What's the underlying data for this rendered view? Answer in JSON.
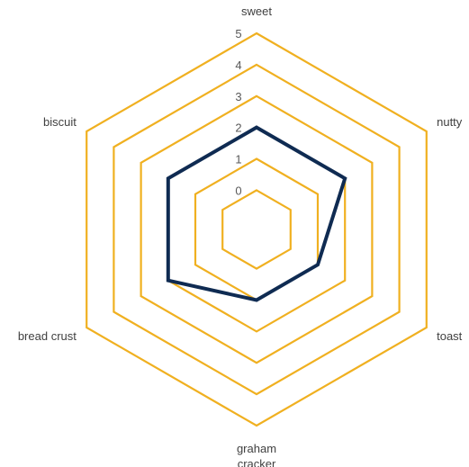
{
  "chart_data": {
    "type": "radar",
    "title": "",
    "categories": [
      "sweet",
      "nutty",
      "toast",
      "graham cracker",
      "bread crust",
      "biscuit"
    ],
    "category_lines": [
      [
        "sweet"
      ],
      [
        "nutty"
      ],
      [
        "toast"
      ],
      [
        "graham",
        "cracker"
      ],
      [
        "bread crust"
      ],
      [
        "biscuit"
      ]
    ],
    "ticks": [
      "0",
      "1",
      "2",
      "3",
      "4",
      "5"
    ],
    "range": [
      0,
      5
    ],
    "series": [
      {
        "values": [
          2,
          2,
          1,
          1,
          2,
          2
        ]
      }
    ],
    "colors": {
      "grid": "#F0B020",
      "series": "#0F2B52",
      "text": "#404040"
    },
    "grid": true,
    "legend": "none"
  }
}
